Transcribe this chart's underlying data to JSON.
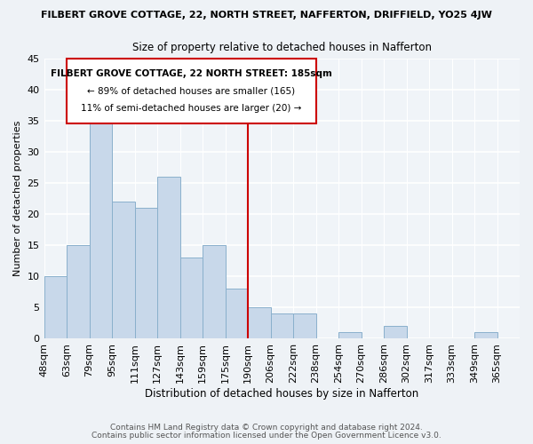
{
  "title": "FILBERT GROVE COTTAGE, 22, NORTH STREET, NAFFERTON, DRIFFIELD, YO25 4JW",
  "subtitle": "Size of property relative to detached houses in Nafferton",
  "xlabel": "Distribution of detached houses by size in Nafferton",
  "ylabel": "Number of detached properties",
  "bin_labels": [
    "48sqm",
    "63sqm",
    "79sqm",
    "95sqm",
    "111sqm",
    "127sqm",
    "143sqm",
    "159sqm",
    "175sqm",
    "190sqm",
    "206sqm",
    "222sqm",
    "238sqm",
    "254sqm",
    "270sqm",
    "286sqm",
    "302sqm",
    "317sqm",
    "333sqm",
    "349sqm",
    "365sqm"
  ],
  "bar_heights": [
    10,
    15,
    35,
    22,
    21,
    26,
    13,
    15,
    8,
    5,
    4,
    4,
    0,
    1,
    0,
    2,
    0,
    0,
    0,
    1,
    0
  ],
  "bar_color": "#c8d8ea",
  "bar_edge_color": "#8ab0cc",
  "property_line_color": "#cc0000",
  "annotation_title": "FILBERT GROVE COTTAGE, 22 NORTH STREET: 185sqm",
  "annotation_line1": "← 89% of detached houses are smaller (165)",
  "annotation_line2": "11% of semi-detached houses are larger (20) →",
  "annotation_box_color": "#cc0000",
  "ylim": [
    0,
    45
  ],
  "yticks": [
    0,
    5,
    10,
    15,
    20,
    25,
    30,
    35,
    40,
    45
  ],
  "footnote1": "Contains HM Land Registry data © Crown copyright and database right 2024.",
  "footnote2": "Contains public sector information licensed under the Open Government Licence v3.0.",
  "bg_color": "#eef2f6",
  "plot_bg_color": "#f0f4f8"
}
